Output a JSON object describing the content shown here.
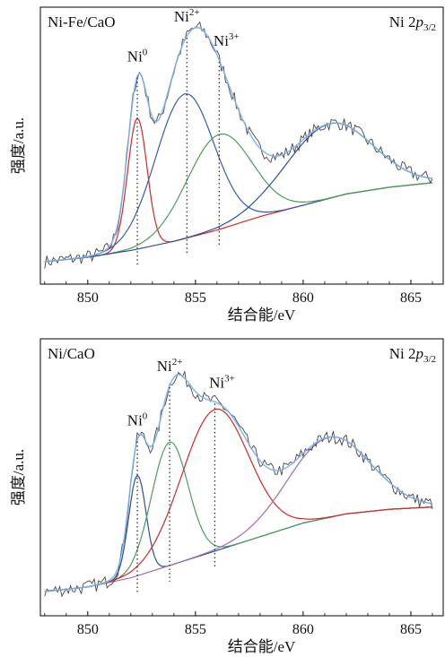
{
  "chart_data": [
    {
      "type": "line",
      "panel_label": "Ni-Fe/CaO",
      "region_label": "Ni 2p",
      "region_sub": "3/2",
      "xlabel": "结合能/eV",
      "ylabel": "强度/a.u.",
      "x_ticks": [
        850,
        855,
        860,
        865
      ],
      "xlim": [
        847.8,
        866.5
      ],
      "ylim": [
        0,
        1.0
      ],
      "background": {
        "x": [
          848.0,
          850.0,
          852.0,
          854.0,
          856.0,
          858.0,
          860.0,
          862.0,
          864.0,
          866.0
        ],
        "y": [
          0.0,
          0.02,
          0.05,
          0.09,
          0.14,
          0.2,
          0.25,
          0.3,
          0.33,
          0.35
        ]
      },
      "series": [
        {
          "color": "#d62728",
          "center": 852.3,
          "height": 0.58,
          "width": 0.45
        },
        {
          "color": "#3a5ca8",
          "center": 854.5,
          "height": 0.64,
          "width": 1.35
        },
        {
          "color": "#4a9e5c",
          "center": 856.1,
          "height": 0.42,
          "width": 1.5
        },
        {
          "color": "#2f4f9a",
          "center": 861.2,
          "height": 0.33,
          "width": 2.0
        }
      ],
      "peak_markers": [
        {
          "label": "Ni",
          "sup": "0",
          "x": 852.3
        },
        {
          "label": "Ni",
          "sup": "2+",
          "x": 854.6
        },
        {
          "label": "Ni",
          "sup": "3+",
          "x": 856.1
        }
      ]
    },
    {
      "type": "line",
      "panel_label": "Ni/CaO",
      "region_label": "Ni 2p",
      "region_sub": "3/2",
      "xlabel": "结合能/eV",
      "ylabel": "强度/a.u.",
      "x_ticks": [
        850,
        855,
        860,
        865
      ],
      "xlim": [
        847.8,
        866.5
      ],
      "ylim": [
        0,
        1.0
      ],
      "background": {
        "x": [
          848.0,
          850.0,
          852.0,
          854.0,
          856.0,
          858.0,
          860.0,
          862.0,
          864.0,
          866.0
        ],
        "y": [
          0.0,
          0.02,
          0.06,
          0.12,
          0.18,
          0.24,
          0.3,
          0.34,
          0.36,
          0.37
        ]
      },
      "series": [
        {
          "color": "#2f4f9a",
          "center": 852.3,
          "height": 0.44,
          "width": 0.4
        },
        {
          "color": "#4a9e5c",
          "center": 853.8,
          "height": 0.54,
          "width": 0.85
        },
        {
          "color": "#d62728",
          "center": 855.9,
          "height": 0.62,
          "width": 1.55
        },
        {
          "color": "#9b6fb0",
          "center": 861.2,
          "height": 0.35,
          "width": 1.9
        }
      ],
      "peak_markers": [
        {
          "label": "Ni",
          "sup": "0",
          "x": 852.3
        },
        {
          "label": "Ni",
          "sup": "2+",
          "x": 853.8
        },
        {
          "label": "Ni",
          "sup": "3+",
          "x": 855.9
        }
      ]
    }
  ]
}
